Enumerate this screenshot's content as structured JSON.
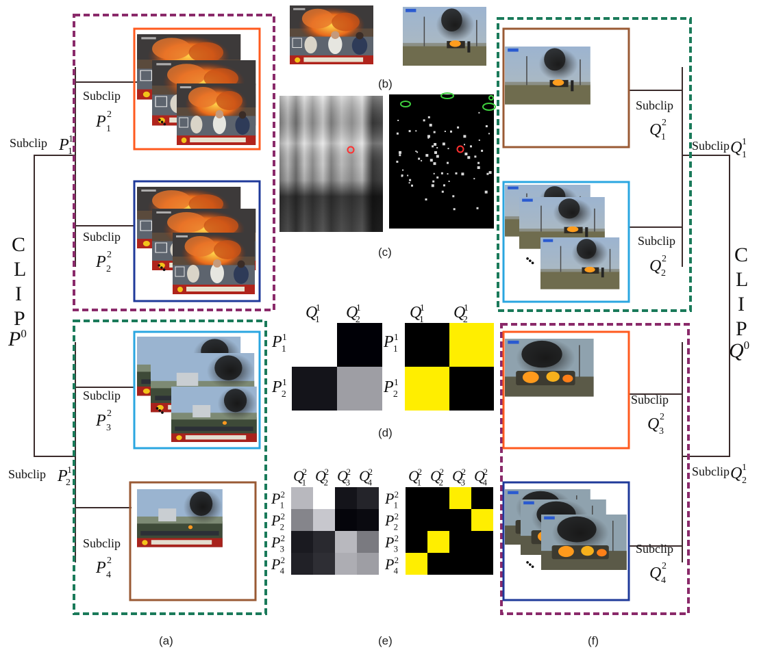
{
  "left": {
    "clip": {
      "letters": [
        "C",
        "L",
        "I",
        "P"
      ],
      "var": "P",
      "sup": "0"
    },
    "level1": [
      {
        "prefix": "Subclip",
        "var": "P",
        "sub": "1",
        "sup": "1"
      },
      {
        "prefix": "Subclip",
        "var": "P",
        "sub": "2",
        "sup": "1"
      }
    ],
    "level2": [
      {
        "prefix": "Subclip",
        "var": "P",
        "sub": "1",
        "sup": "2"
      },
      {
        "prefix": "Subclip",
        "var": "P",
        "sub": "2",
        "sup": "2"
      },
      {
        "prefix": "Subclip",
        "var": "P",
        "sub": "3",
        "sup": "2"
      },
      {
        "prefix": "Subclip",
        "var": "P",
        "sub": "4",
        "sup": "2"
      }
    ]
  },
  "right": {
    "clip": {
      "letters": [
        "C",
        "L",
        "I",
        "P"
      ],
      "var": "Q",
      "sup": "0"
    },
    "level1": [
      {
        "prefix": "Subclip",
        "var": "Q",
        "sub": "1",
        "sup": "1"
      },
      {
        "prefix": "Subclip",
        "var": "Q",
        "sub": "2",
        "sup": "1"
      }
    ],
    "level2": [
      {
        "prefix": "Subclip",
        "var": "Q",
        "sub": "1",
        "sup": "2"
      },
      {
        "prefix": "Subclip",
        "var": "Q",
        "sub": "2",
        "sup": "2"
      },
      {
        "prefix": "Subclip",
        "var": "Q",
        "sub": "3",
        "sup": "2"
      },
      {
        "prefix": "Subclip",
        "var": "Q",
        "sub": "4",
        "sup": "2"
      }
    ]
  },
  "ellipsis": "•••",
  "panel_labels": {
    "a": "(a)",
    "b": "(b)",
    "c": "(c)",
    "d": "(d)",
    "e": "(e)",
    "f": "(f)"
  },
  "matrix_d": {
    "cols": [
      {
        "var": "Q",
        "sub": "1",
        "sup": "1"
      },
      {
        "var": "Q",
        "sub": "2",
        "sup": "1"
      }
    ],
    "rows": [
      {
        "var": "P",
        "sub": "1",
        "sup": "1"
      },
      {
        "var": "P",
        "sub": "2",
        "sup": "1"
      }
    ],
    "similarity": [
      [
        null,
        0.0
      ],
      [
        0.08,
        0.62
      ]
    ],
    "matching": [
      [
        0,
        1
      ],
      [
        1,
        0
      ]
    ]
  },
  "matrix_e": {
    "cols": [
      {
        "var": "Q",
        "sub": "1",
        "sup": "2"
      },
      {
        "var": "Q",
        "sub": "2",
        "sup": "2"
      },
      {
        "var": "Q",
        "sub": "3",
        "sup": "2"
      },
      {
        "var": "Q",
        "sub": "4",
        "sup": "2"
      }
    ],
    "rows": [
      {
        "var": "P",
        "sub": "1",
        "sup": "2"
      },
      {
        "var": "P",
        "sub": "2",
        "sup": "2"
      },
      {
        "var": "P",
        "sub": "3",
        "sup": "2"
      },
      {
        "var": "P",
        "sub": "4",
        "sup": "2"
      }
    ],
    "similarity": [
      [
        0.72,
        null,
        0.08,
        0.14
      ],
      [
        0.52,
        0.78,
        0.02,
        0.04
      ],
      [
        0.1,
        0.16,
        0.72,
        0.48
      ],
      [
        0.13,
        0.18,
        0.68,
        0.62
      ]
    ],
    "matching": [
      [
        0,
        0,
        1,
        0
      ],
      [
        0,
        0,
        0,
        1
      ],
      [
        0,
        1,
        0,
        0
      ],
      [
        1,
        0,
        0,
        0
      ]
    ]
  },
  "colors": {
    "purple_dash": "#8a2a6a",
    "green_dash": "#1a7a5a",
    "orange_frame": "#ff5a1e",
    "navy_frame": "#1f3a9a",
    "cyan_frame": "#2aa6e0",
    "brown_frame": "#9a5a34",
    "match_yellow": "#ffee00",
    "tree_line": "#3a2a2a"
  }
}
